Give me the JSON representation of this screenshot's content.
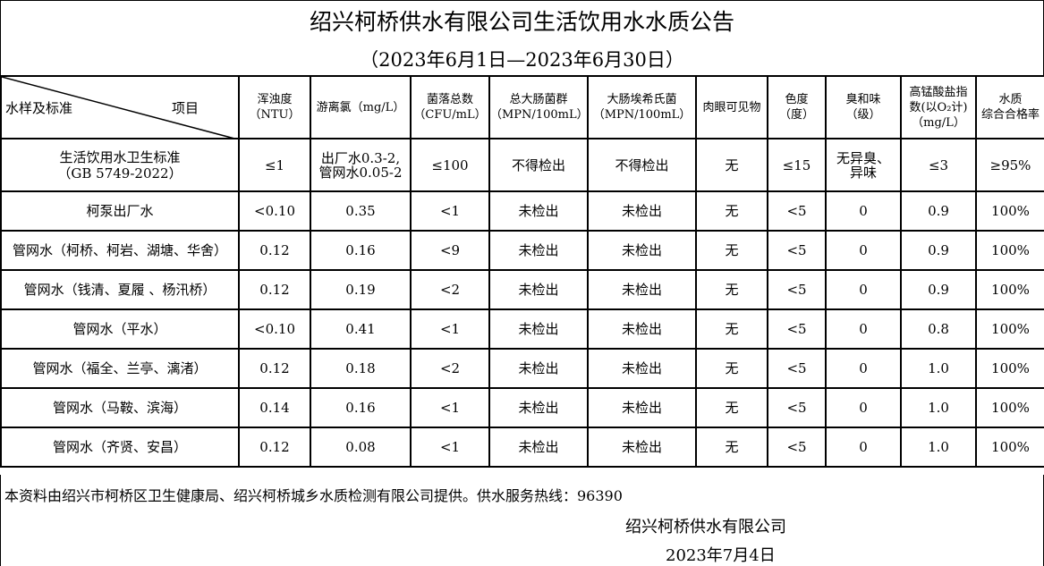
{
  "title": "绍兴柯桥供水有限公司生活饮用水水质公告",
  "subtitle": "（2023年6月1日—2023年6月30日）",
  "header": {
    "corner_left": "水样及标准",
    "corner_right": "项目",
    "columns": [
      [
        "浑浊度",
        "（NTU）"
      ],
      [
        "游离氯（mg/L）",
        ""
      ],
      [
        "菌落总数",
        "（CFU/mL）"
      ],
      [
        "总大肠菌群",
        "（MPN/100mL）"
      ],
      [
        "大肠埃希氏菌",
        "（MPN/100mL）"
      ],
      [
        "肉眼可见物",
        ""
      ],
      [
        "色度",
        "（度）"
      ],
      [
        "臭和味",
        "（级）"
      ],
      [
        "高锰酸盐指",
        "数(以O₂计)",
        "（mg/L）"
      ],
      [
        "水质",
        "综合合格率"
      ]
    ]
  },
  "standard": {
    "name": [
      "生活饮用水卫生标准",
      "（GB 5749-2022）"
    ],
    "values": [
      "≤1",
      [
        "出厂水0.3-2,",
        "管网水0.05-2"
      ],
      "≤100",
      "不得检出",
      "不得检出",
      "无",
      "≤15",
      [
        "无异臭、",
        "异味"
      ],
      "≤3",
      "≥95%"
    ]
  },
  "rows": [
    {
      "name": "柯泵出厂水",
      "values": [
        "<0.10",
        "0.35",
        "<1",
        "未检出",
        "未检出",
        "无",
        "<5",
        "0",
        "0.9",
        "100%"
      ]
    },
    {
      "name": "管网水（柯桥、柯岩、湖塘、华舍）",
      "values": [
        "0.12",
        "0.16",
        "<9",
        "未检出",
        "未检出",
        "无",
        "<5",
        "0",
        "0.9",
        "100%"
      ]
    },
    {
      "name": "管网水（钱清、夏履 、杨汛桥）",
      "values": [
        "0.12",
        "0.19",
        "<2",
        "未检出",
        "未检出",
        "无",
        "<5",
        "0",
        "0.9",
        "100%"
      ]
    },
    {
      "name": "管网水（平水）",
      "values": [
        "<0.10",
        "0.41",
        "<1",
        "未检出",
        "未检出",
        "无",
        "<5",
        "0",
        "0.8",
        "100%"
      ]
    },
    {
      "name": "管网水（福全、兰亭、漓渚）",
      "values": [
        "0.12",
        "0.18",
        "<2",
        "未检出",
        "未检出",
        "无",
        "<5",
        "0",
        "1.0",
        "100%"
      ]
    },
    {
      "name": "管网水（马鞍、滨海）",
      "values": [
        "0.14",
        "0.16",
        "<1",
        "未检出",
        "未检出",
        "无",
        "<5",
        "0",
        "1.0",
        "100%"
      ]
    },
    {
      "name": "管网水（齐贤、安昌）",
      "values": [
        "0.12",
        "0.08",
        "<1",
        "未检出",
        "未检出",
        "无",
        "<5",
        "0",
        "1.0",
        "100%"
      ]
    }
  ],
  "footer": {
    "note": "本资料由绍兴市柯桥区卫生健康局、绍兴柯桥城乡水质检测有限公司提供。供水服务热线：96390",
    "org": "绍兴柯桥供水有限公司",
    "date": "2023年7月4日"
  }
}
